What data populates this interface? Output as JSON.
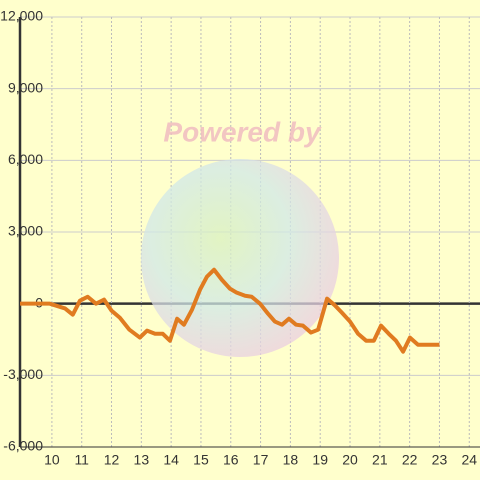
{
  "chart_data": {
    "type": "line",
    "watermark": "Powered by",
    "x": [
      8.93,
      9.93,
      10.44,
      10.7,
      10.94,
      11.2,
      11.48,
      11.75,
      12.0,
      12.28,
      12.6,
      12.95,
      13.19,
      13.46,
      13.72,
      13.96,
      14.2,
      14.43,
      14.7,
      14.97,
      15.2,
      15.44,
      15.7,
      15.97,
      16.2,
      16.48,
      16.7,
      16.98,
      17.25,
      17.48,
      17.72,
      17.95,
      18.19,
      18.42,
      18.69,
      18.93,
      19.23,
      19.5,
      19.73,
      20.0,
      20.27,
      20.54,
      20.8,
      21.04,
      21.3,
      21.54,
      21.78,
      22.01,
      22.28,
      22.55,
      23.0
    ],
    "series": [
      {
        "color": "#e07b20",
        "values": [
          0,
          0,
          -200,
          -460,
          125,
          290,
          0,
          170,
          -290,
          -590,
          -1090,
          -1420,
          -1130,
          -1260,
          -1260,
          -1550,
          -630,
          -880,
          -250,
          590,
          1130,
          1420,
          1000,
          630,
          460,
          330,
          290,
          0,
          -420,
          -750,
          -880,
          -630,
          -880,
          -920,
          -1210,
          -1090,
          210,
          -80,
          -380,
          -750,
          -1260,
          -1550,
          -1550,
          -920,
          -1260,
          -1550,
          -2010,
          -1420,
          -1720,
          -1720,
          -1720
        ]
      }
    ],
    "xlim": [
      8.93,
      24.36
    ],
    "xticks": [
      10,
      11,
      12,
      13,
      14,
      15,
      16,
      17,
      18,
      19,
      20,
      21,
      22,
      23,
      24
    ],
    "ylim": [
      -6000,
      12000
    ],
    "yticks": [
      {
        "value": -6000,
        "label": "-6,000"
      },
      {
        "value": -3000,
        "label": "-3,000"
      },
      0,
      {
        "value": 3000,
        "label": "3,000"
      },
      {
        "value": 6000,
        "label": "6,000"
      },
      {
        "value": 9000,
        "label": "9,000"
      },
      {
        "value": 12000,
        "label": "12,000"
      }
    ],
    "grid": true
  }
}
